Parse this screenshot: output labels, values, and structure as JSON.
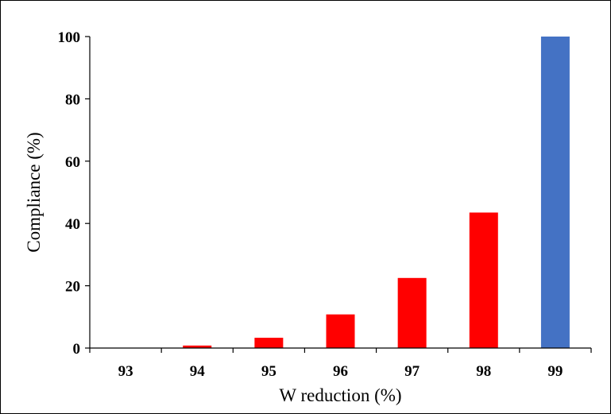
{
  "chart_data": {
    "type": "bar",
    "categories": [
      "93",
      "94",
      "95",
      "96",
      "97",
      "98",
      "99"
    ],
    "values": [
      0,
      0.8,
      3.3,
      10.8,
      22.5,
      43.5,
      100
    ],
    "bar_colors": [
      "#ff0000",
      "#ff0000",
      "#ff0000",
      "#ff0000",
      "#ff0000",
      "#ff0000",
      "#4472c4"
    ],
    "xlabel": "W reduction (%)",
    "ylabel": "Compliance (%)",
    "ylim": [
      0,
      100
    ],
    "yticks": [
      0,
      20,
      40,
      60,
      80,
      100
    ],
    "grid": false,
    "legend": "none"
  }
}
